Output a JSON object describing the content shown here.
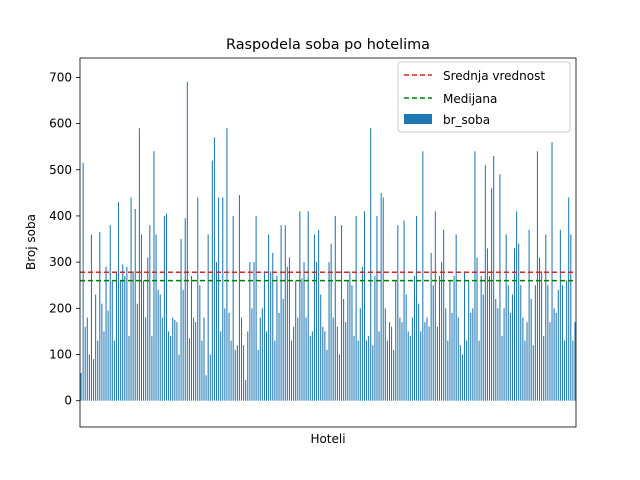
{
  "chart_data": {
    "type": "bar",
    "title": "Raspodela soba po hotelima",
    "xlabel": "Hoteli",
    "ylabel": "Broj soba",
    "ylim": [
      -57,
      742
    ],
    "yticks": [
      0,
      100,
      200,
      300,
      400,
      500,
      600,
      700
    ],
    "mean": 278,
    "median": 260,
    "mean_color": "#d62728",
    "median_color": "#008000",
    "bar_color": "#1f77b4",
    "legend_position": "top-right",
    "legend": {
      "mean_label": "Srednja vrednost",
      "median_label": "Medijana",
      "bars_label": "br_soba"
    },
    "series": [
      {
        "name": "br_soba",
        "values": [
          60,
          515,
          160,
          180,
          100,
          360,
          90,
          230,
          130,
          365,
          210,
          150,
          290,
          195,
          380,
          260,
          130,
          280,
          430,
          260,
          295,
          270,
          290,
          140,
          440,
          280,
          415,
          210,
          590,
          360,
          260,
          180,
          310,
          380,
          140,
          540,
          360,
          240,
          230,
          180,
          400,
          405,
          150,
          140,
          180,
          175,
          170,
          100,
          350,
          240,
          395,
          690,
          135,
          270,
          180,
          170,
          440,
          250,
          130,
          180,
          55,
          360,
          100,
          520,
          570,
          300,
          440,
          150,
          440,
          200,
          590,
          190,
          130,
          400,
          110,
          120,
          445,
          180,
          120,
          45,
          150,
          300,
          200,
          300,
          400,
          110,
          180,
          200,
          280,
          150,
          360,
          280,
          320,
          130,
          270,
          190,
          380,
          220,
          380,
          290,
          310,
          130,
          160,
          260,
          180,
          410,
          265,
          300,
          180,
          410,
          140,
          150,
          360,
          300,
          370,
          230,
          160,
          150,
          110,
          300,
          340,
          180,
          400,
          160,
          100,
          380,
          220,
          170,
          260,
          280,
          250,
          140,
          400,
          130,
          200,
          290,
          410,
          130,
          140,
          590,
          120,
          270,
          400,
          150,
          450,
          440,
          200,
          130,
          170,
          160,
          110,
          260,
          380,
          180,
          170,
          390,
          230,
          150,
          140,
          180,
          270,
          400,
          210,
          150,
          540,
          170,
          180,
          160,
          320,
          250,
          410,
          160,
          270,
          300,
          370,
          200,
          130,
          260,
          190,
          270,
          360,
          180,
          120,
          100,
          280,
          130,
          260,
          190,
          200,
          540,
          310,
          130,
          270,
          230,
          510,
          330,
          270,
          460,
          530,
          220,
          200,
          490,
          140,
          200,
          360,
          250,
          190,
          230,
          330,
          410,
          340,
          250,
          180,
          130,
          170,
          370,
          220,
          120,
          250,
          540,
          310,
          280,
          140,
          360,
          250,
          170,
          560,
          200,
          190,
          240,
          370,
          250,
          130,
          260,
          440,
          360,
          130,
          170
        ]
      }
    ]
  }
}
